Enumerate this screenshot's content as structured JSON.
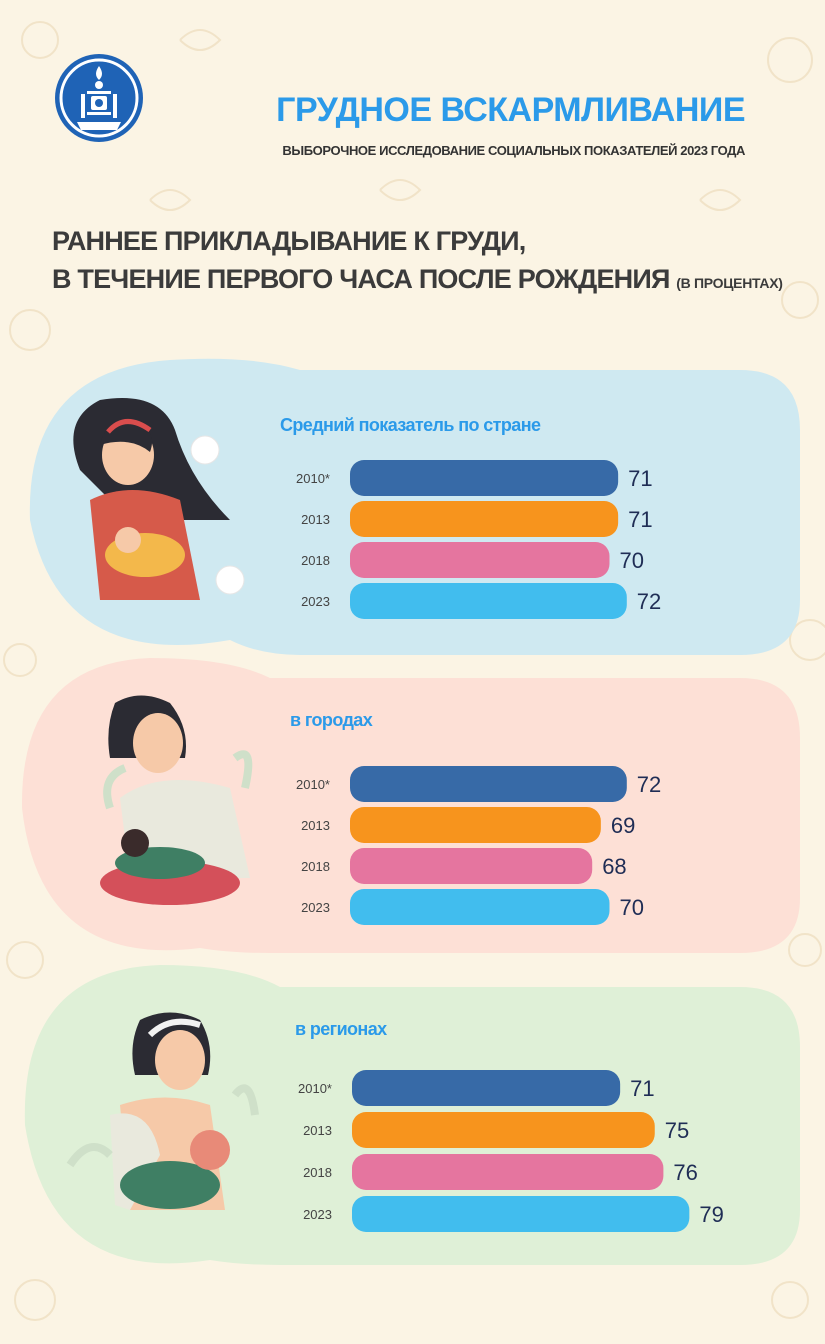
{
  "header": {
    "title": "ГРУДНОЕ ВСКАРМЛИВАНИЕ",
    "subtitle": "ВЫБОРОЧНОЕ ИССЛЕДОВАНИЕ СОЦИАЛЬНЫХ ПОКАЗАТЕЛЕЙ 2023 ГОДА"
  },
  "section": {
    "line1": "РАННЕЕ ПРИКЛАДЫВАНИЕ К ГРУДИ,",
    "line2": "В ТЕЧЕНИЕ ПЕРВОГО ЧАСА ПОСЛЕ РОЖДЕНИЯ",
    "unit": "(В ПРОЦЕНТАХ)"
  },
  "colors": {
    "series": [
      "#376aa7",
      "#f7941d",
      "#e5759f",
      "#41bdee"
    ],
    "panel_bg": [
      "#cfe9f1",
      "#fde0d6",
      "#dff0d7"
    ],
    "title": "#2b9ae9"
  },
  "chart_data": [
    {
      "type": "bar",
      "title": "Средний показатель по стране",
      "categories": [
        "2010*",
        "2013",
        "2018",
        "2023"
      ],
      "values": [
        71,
        71,
        70,
        72
      ]
    },
    {
      "type": "bar",
      "title": "в городах",
      "categories": [
        "2010*",
        "2013",
        "2018",
        "2023"
      ],
      "values": [
        72,
        69,
        68,
        70
      ]
    },
    {
      "type": "bar",
      "title": "в регионах",
      "categories": [
        "2010*",
        "2013",
        "2018",
        "2023"
      ],
      "values": [
        71,
        75,
        76,
        79
      ]
    }
  ]
}
